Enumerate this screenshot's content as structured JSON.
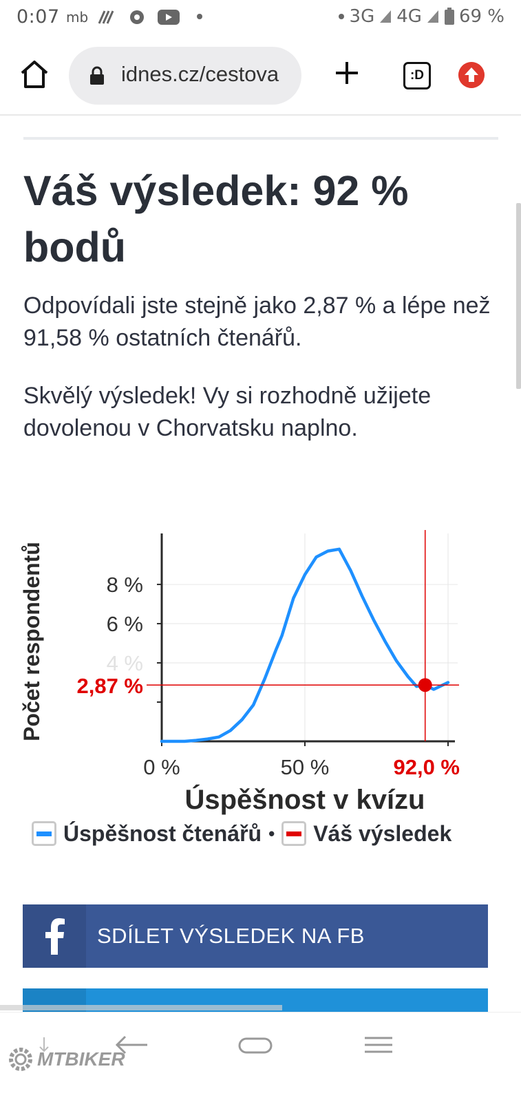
{
  "status_bar": {
    "time": "0:07",
    "carrier_tag": "mb",
    "network_3g": "3G",
    "network_4g": "4G",
    "battery": "69 %"
  },
  "browser": {
    "url": "idnes.cz/cestova",
    "tabs_label": ":D"
  },
  "article": {
    "result_title": "Váš výsledek: 92 % bodů",
    "paragraph_1": "Odpovídali jste stejně jako 2,87 % a lépe než 91,58 % ostatních čtenářů.",
    "paragraph_2": "Skvělý výsledek! Vy si rozhodně užijete dovolenou v Chorvatsku naplno."
  },
  "chart_data": {
    "type": "line",
    "xlabel": "Úspěšnost v kvízu",
    "ylabel": "Počet respondentů",
    "xlim": [
      0,
      100
    ],
    "ylim": [
      0,
      10.6
    ],
    "x_ticks": [
      {
        "value": 0,
        "label": "0 %"
      },
      {
        "value": 50,
        "label": "50 %"
      }
    ],
    "y_ticks": [
      {
        "value": 4,
        "label": "4 %"
      },
      {
        "value": 6,
        "label": "6 %"
      },
      {
        "value": 8,
        "label": "8 %"
      }
    ],
    "grid": true,
    "series": [
      {
        "name": "Úspěšnost čtenářů",
        "color": "#1e90ff",
        "x": [
          0,
          4,
          8,
          12,
          16,
          20,
          24,
          28,
          32,
          36,
          40,
          42,
          46,
          50,
          54,
          58,
          62,
          66,
          70,
          74,
          78,
          82,
          86,
          89,
          92,
          95,
          100
        ],
        "y": [
          0.0,
          0.0,
          0.0,
          0.05,
          0.12,
          0.22,
          0.55,
          1.1,
          1.85,
          3.2,
          4.7,
          5.4,
          7.3,
          8.5,
          9.4,
          9.7,
          9.8,
          8.7,
          7.4,
          6.2,
          5.1,
          4.1,
          3.3,
          2.8,
          2.87,
          2.65,
          3.0
        ]
      }
    ],
    "your_result": {
      "name": "Váš výsledek",
      "color": "#e00000",
      "x": 92.0,
      "y": 2.87,
      "x_label": "92,0 %",
      "y_label": "2,87 %"
    },
    "legend": {
      "placement": "bottom",
      "items": [
        "Úspěšnost čtenářů",
        "Váš výsledek"
      ],
      "separator": "•"
    }
  },
  "share": {
    "facebook_label": "SDÍLET VÝSLEDEK NA FB"
  },
  "watermark": "MTBIKER"
}
